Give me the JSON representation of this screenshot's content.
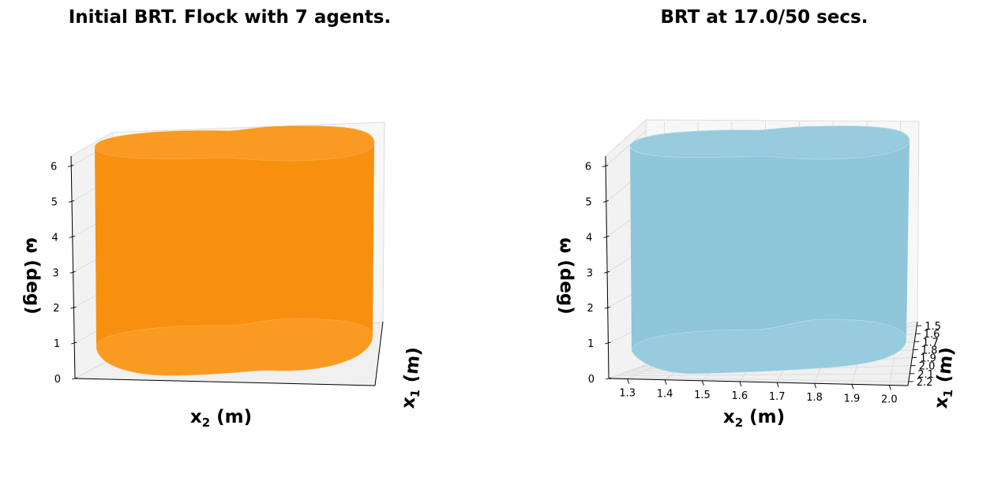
{
  "chart_data": [
    {
      "type": "3d-surface",
      "title": "Initial BRT. Flock with 7 agents.",
      "color": "#f8900f",
      "xlabel": {
        "main": "x",
        "sub": "2",
        "rest": " (m)"
      },
      "ylabel": {
        "main": "x",
        "sub": "1",
        "rest": " (m)"
      },
      "zlabel": "ω (deg)",
      "z_ticks": [
        "0",
        "1",
        "2",
        "3",
        "4",
        "5",
        "6"
      ],
      "x_ticks": [],
      "y_ticks": [],
      "zlim": [
        0,
        6.28
      ]
    },
    {
      "type": "3d-surface",
      "title": "BRT at 17.0/50 secs.",
      "color": "#8fc6da",
      "xlabel": {
        "main": "x",
        "sub": "2",
        "rest": " (m)"
      },
      "ylabel": {
        "main": "x",
        "sub": "1",
        "rest": " (m)"
      },
      "zlabel": "ω (deg)",
      "z_ticks": [
        "0",
        "1",
        "2",
        "3",
        "4",
        "5",
        "6"
      ],
      "x_ticks": [
        "1.3",
        "1.4",
        "1.5",
        "1.6",
        "1.7",
        "1.8",
        "1.9",
        "2.0"
      ],
      "y_ticks": [
        "1.5",
        "1.6",
        "1.7",
        "1.8",
        "1.9",
        "2.0",
        "2.1",
        "2.2"
      ],
      "xlim": [
        1.25,
        2.05
      ],
      "ylim": [
        1.45,
        2.25
      ],
      "zlim": [
        0,
        6.28
      ]
    }
  ]
}
